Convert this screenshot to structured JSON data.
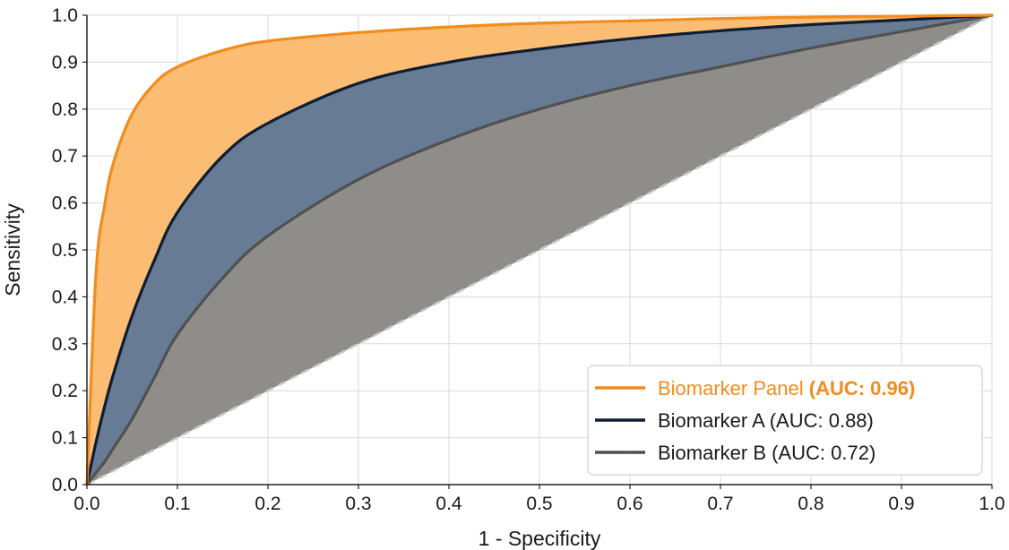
{
  "chart_data": {
    "type": "line",
    "title": "",
    "xlabel": "1 - Specificity",
    "ylabel": "Sensitivity",
    "xlim": [
      0,
      1
    ],
    "ylim": [
      0,
      1
    ],
    "x_ticks": [
      "0.0",
      "0.1",
      "0.2",
      "0.3",
      "0.4",
      "0.5",
      "0.6",
      "0.7",
      "0.8",
      "0.9",
      "1.0"
    ],
    "y_ticks": [
      "0.0",
      "0.1",
      "0.2",
      "0.3",
      "0.4",
      "0.5",
      "0.6",
      "0.7",
      "0.8",
      "0.9",
      "1.0"
    ],
    "grid": true,
    "legend_position": "bottom-right",
    "x": [
      0,
      0.01,
      0.02,
      0.03,
      0.05,
      0.075,
      0.1,
      0.15,
      0.2,
      0.3,
      0.4,
      0.5,
      0.6,
      0.7,
      0.8,
      0.9,
      1.0
    ],
    "series": [
      {
        "name": "Biomarker Panel",
        "auc_label": "(AUC: 0.96)",
        "color": "#f28c1c",
        "fill": "#fbbd73",
        "values": [
          0,
          0.45,
          0.6,
          0.69,
          0.79,
          0.855,
          0.89,
          0.925,
          0.945,
          0.963,
          0.975,
          0.983,
          0.988,
          0.993,
          0.996,
          0.998,
          1.0
        ]
      },
      {
        "name": "Biomarker A",
        "auc_label": "(AUC: 0.88)",
        "color": "#0f1c33",
        "fill": "#677c94",
        "values": [
          0,
          0.09,
          0.17,
          0.24,
          0.36,
          0.48,
          0.58,
          0.7,
          0.77,
          0.855,
          0.9,
          0.928,
          0.95,
          0.967,
          0.98,
          0.99,
          1.0
        ]
      },
      {
        "name": "Biomarker B",
        "auc_label": "(AUC: 0.72)",
        "color": "#505050",
        "fill": "#8e8d89",
        "values": [
          0,
          0.025,
          0.05,
          0.08,
          0.14,
          0.23,
          0.32,
          0.44,
          0.53,
          0.65,
          0.735,
          0.8,
          0.85,
          0.89,
          0.93,
          0.965,
          1.0
        ]
      }
    ],
    "reference_line": {
      "style": "dashed",
      "color": "#c8c8c8"
    }
  }
}
